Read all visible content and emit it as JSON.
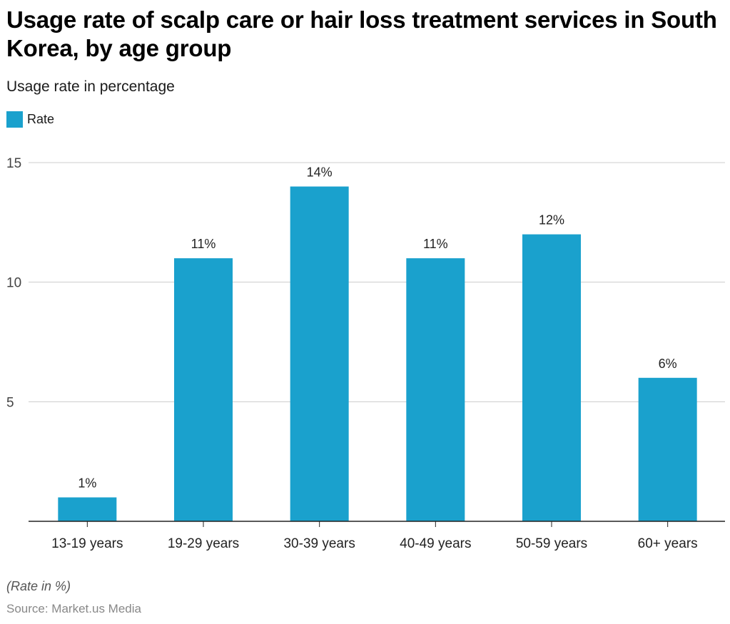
{
  "header": {
    "title": "Usage rate of scalp care or hair loss treatment services in South Korea, by age group",
    "subtitle": "Usage rate in percentage"
  },
  "legend": {
    "label": "Rate",
    "color": "#1aa1cd"
  },
  "footer": {
    "note": "(Rate in %)",
    "source": "Source: Market.us Media"
  },
  "chart_data": {
    "type": "bar",
    "title": "Usage rate of scalp care or hair loss treatment services in South Korea, by age group",
    "subtitle": "Usage rate in percentage",
    "xlabel": "",
    "ylabel": "",
    "categories": [
      "13-19 years",
      "19-29 years",
      "30-39 years",
      "40-49 years",
      "50-59 years",
      "60+ years"
    ],
    "series": [
      {
        "name": "Rate",
        "color": "#1aa1cd",
        "values": [
          1,
          11,
          14,
          11,
          12,
          6
        ]
      }
    ],
    "data_labels": [
      "1%",
      "11%",
      "14%",
      "11%",
      "12%",
      "6%"
    ],
    "ylim": [
      0,
      15
    ],
    "yticks": [
      5,
      10,
      15
    ],
    "grid": true,
    "legend_position": "top-left"
  }
}
